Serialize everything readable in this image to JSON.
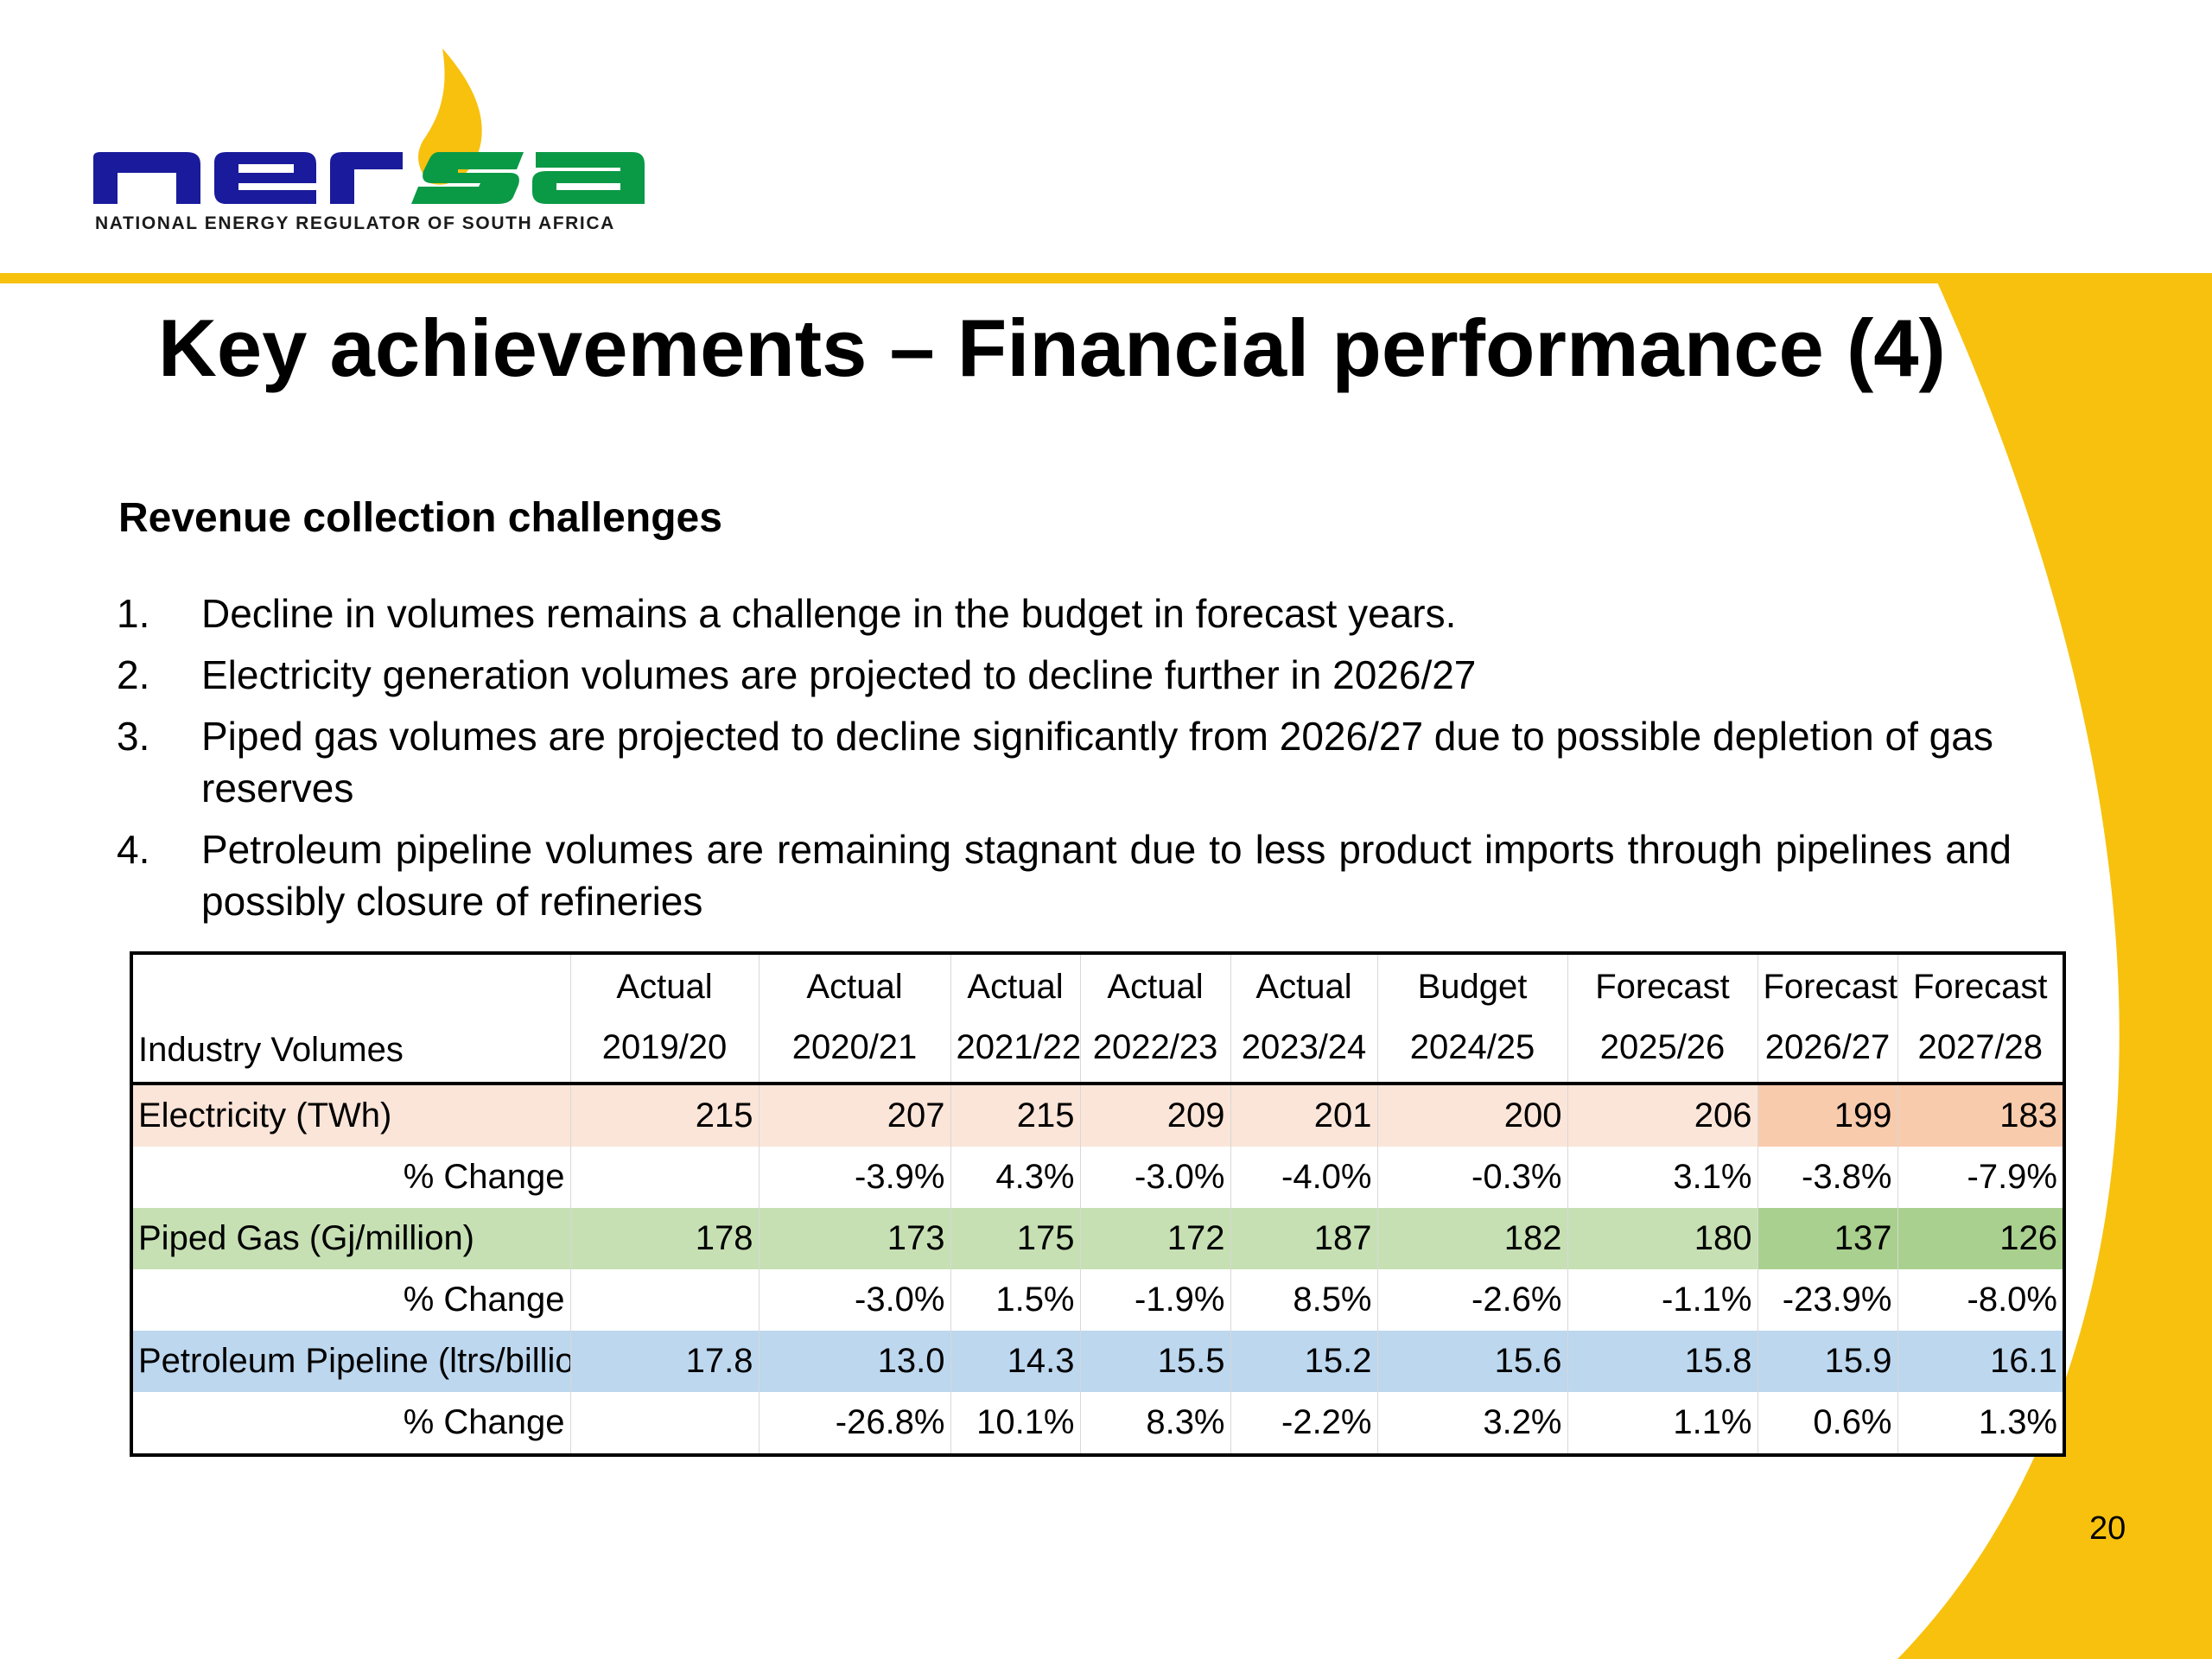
{
  "brand": {
    "logo_text": "nersa",
    "caption": "NATIONAL ENERGY REGULATOR OF SOUTH AFRICA",
    "colors": {
      "navy": "#1a1a9c",
      "green": "#0a9a46",
      "yellow": "#f7c10e"
    }
  },
  "slide": {
    "title": "Key achievements – Financial performance (4)",
    "subtitle": "Revenue collection challenges",
    "page_number": "20"
  },
  "points": [
    {
      "num": "1.",
      "text": "Decline in volumes remains a challenge in the budget in forecast years."
    },
    {
      "num": "2.",
      "text": "Electricity generation volumes are projected to decline further in 2026/27"
    },
    {
      "num": "3.",
      "text": "Piped gas volumes are projected to decline significantly from 2026/27 due to possible depletion of gas reserves"
    },
    {
      "num": "4.",
      "text": "Petroleum pipeline volumes are remaining stagnant due to less product imports through pipelines and possibly closure of refineries"
    }
  ],
  "table": {
    "header": {
      "label": "Industry Volumes",
      "columns": [
        {
          "type": "Actual",
          "year": "2019/20"
        },
        {
          "type": "Actual",
          "year": "2020/21"
        },
        {
          "type": "Actual",
          "year": "2021/22"
        },
        {
          "type": "Actual",
          "year": "2022/23"
        },
        {
          "type": "Actual",
          "year": "2023/24"
        },
        {
          "type": "Budget",
          "year": "2024/25"
        },
        {
          "type": "Forecast",
          "year": "2025/26"
        },
        {
          "type": "Forecast",
          "year": "2026/27"
        },
        {
          "type": "Forecast",
          "year": "2027/28"
        }
      ]
    },
    "rows": [
      {
        "label": "Electricity (TWh)",
        "values": [
          "215",
          "207",
          "215",
          "209",
          "201",
          "200",
          "206",
          "199",
          "183"
        ]
      },
      {
        "label": "% Change",
        "values": [
          "",
          "-3.9%",
          "4.3%",
          "-3.0%",
          "-4.0%",
          "-0.3%",
          "3.1%",
          "-3.8%",
          "-7.9%"
        ]
      },
      {
        "label": "Piped Gas (Gj/million)",
        "values": [
          "178",
          "173",
          "175",
          "172",
          "187",
          "182",
          "180",
          "137",
          "126"
        ]
      },
      {
        "label": "% Change",
        "values": [
          "",
          "-3.0%",
          "1.5%",
          "-1.9%",
          "8.5%",
          "-2.6%",
          "-1.1%",
          "-23.9%",
          "-8.0%"
        ]
      },
      {
        "label": "Petroleum Pipeline (ltrs/billion)",
        "values": [
          "17.8",
          "13.0",
          "14.3",
          "15.5",
          "15.2",
          "15.6",
          "15.8",
          "15.9",
          "16.1"
        ]
      },
      {
        "label": "% Change",
        "values": [
          "",
          "-26.8%",
          "10.1%",
          "8.3%",
          "-2.2%",
          "3.2%",
          "1.1%",
          "0.6%",
          "1.3%"
        ]
      }
    ]
  }
}
